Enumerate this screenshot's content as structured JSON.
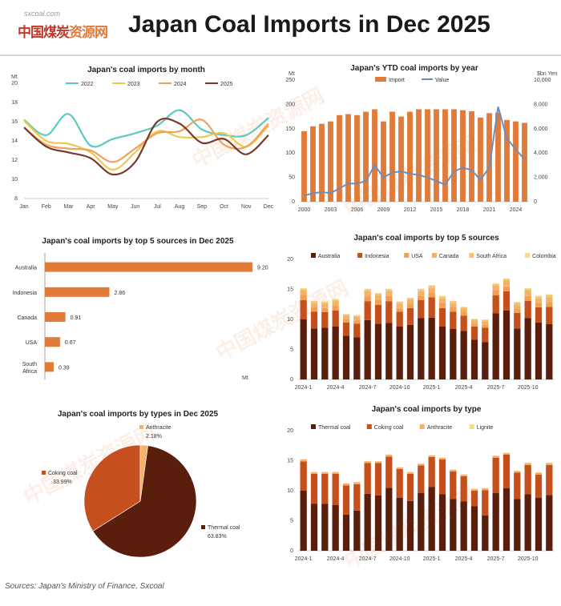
{
  "header": {
    "logo_sub": "sxcoal.com",
    "logo_main": "中国煤炭",
    "logo_main_hl": "资源网",
    "title": "Japan Coal Imports in Dec 2025"
  },
  "source": "Sources: Japan's Ministry of Finance, Sxcoal",
  "colors": {
    "thermal": "#5a1e0c",
    "coking": "#c5501e",
    "anthracite": "#e8893a",
    "lignite": "#f3c07a",
    "usa": "#f0a050",
    "canada": "#f3b16a",
    "sa": "#f5c56a",
    "colombia": "#f8d890"
  },
  "chart_data": [
    {
      "id": "monthly",
      "type": "line",
      "title": "Japan's coal imports by month",
      "yunit": "Mt",
      "ylim": [
        8,
        20
      ],
      "yticks": [
        8,
        10,
        12,
        14,
        16,
        18,
        20
      ],
      "categories": [
        "Jan",
        "Feb",
        "Mar",
        "Apr",
        "May",
        "Jun",
        "Jul",
        "Aug",
        "Sep",
        "Oct",
        "Nov",
        "Dec"
      ],
      "series": [
        {
          "name": "2022",
          "color": "#5ec9c0",
          "values": [
            16.2,
            14.6,
            16.8,
            13.5,
            14.2,
            14.8,
            15.6,
            17.2,
            15.2,
            14.6,
            14.6,
            16.4
          ]
        },
        {
          "name": "2023",
          "color": "#f2c84b",
          "values": [
            16.1,
            14.0,
            13.7,
            12.8,
            11.0,
            12.8,
            15.0,
            14.4,
            14.4,
            14.8,
            13.4,
            15.6
          ]
        },
        {
          "name": "2024",
          "color": "#f0a060",
          "values": [
            15.4,
            13.6,
            13.2,
            13.0,
            11.8,
            13.2,
            14.8,
            15.0,
            16.2,
            13.6,
            13.4,
            15.8
          ]
        },
        {
          "name": "2025",
          "color": "#7a3a2a",
          "values": [
            15.4,
            13.4,
            12.8,
            12.2,
            10.5,
            11.8,
            16.0,
            15.8,
            13.8,
            14.2,
            12.6,
            14.6
          ]
        }
      ]
    },
    {
      "id": "ytd",
      "type": "bar",
      "title": "Japan's YTD coal imports by year",
      "yunit_left": "Mt",
      "yunit_right": "$bn Yen",
      "ylim": [
        0,
        250
      ],
      "yticks": [
        0,
        50,
        100,
        150,
        200,
        250
      ],
      "ylim_right": [
        0,
        10000
      ],
      "yticks_right": [
        "0",
        "2,000",
        "4,000",
        "6,000",
        "8,000",
        "10,000"
      ],
      "yticks_right_values": [
        0,
        2000,
        4000,
        6000,
        8000,
        10000
      ],
      "xticks": [
        "2000",
        "2003",
        "2006",
        "2009",
        "2012",
        "2015",
        "2018",
        "2021",
        "2024"
      ],
      "x": [
        2000,
        2001,
        2002,
        2003,
        2004,
        2005,
        2006,
        2007,
        2008,
        2009,
        2010,
        2011,
        2012,
        2013,
        2014,
        2015,
        2016,
        2017,
        2018,
        2019,
        2020,
        2021,
        2022,
        2023,
        2024,
        2025
      ],
      "series": [
        {
          "name": "Import",
          "color": "#e07b39",
          "values": [
            145,
            155,
            160,
            165,
            178,
            180,
            178,
            185,
            190,
            165,
            185,
            175,
            185,
            190,
            190,
            190,
            190,
            190,
            188,
            186,
            173,
            182,
            183,
            168,
            165,
            162
          ]
        },
        {
          "name": "Value",
          "color": "#6c8ebf",
          "values": [
            500,
            700,
            800,
            700,
            1100,
            1500,
            1500,
            1700,
            3000,
            2000,
            2400,
            2500,
            2300,
            2200,
            2000,
            1700,
            1400,
            2500,
            2800,
            2600,
            1800,
            2800,
            7800,
            5200,
            4300,
            3500
          ]
        }
      ],
      "legend": [
        "Import",
        "Value"
      ]
    },
    {
      "id": "top5",
      "type": "bar",
      "orientation": "horizontal",
      "title": "Japan's coal imports by top 5 sources in Dec 2025",
      "unit": "Mt",
      "categories": [
        "Australia",
        "Indonesia",
        "Canada",
        "USA",
        "South\nAfrica"
      ],
      "values": [
        9.2,
        2.86,
        0.91,
        0.67,
        0.39
      ],
      "labels": [
        "9.20",
        "2.86",
        "0.91",
        "0.67",
        "0.39"
      ],
      "xlim": [
        0,
        9.2
      ]
    },
    {
      "id": "sources",
      "type": "bar",
      "stacked": true,
      "title": "Japan's coal imports by top 5 sources",
      "ylim": [
        0,
        20
      ],
      "yticks": [
        0,
        5,
        10,
        15,
        20
      ],
      "xticks": [
        "2024-1",
        "2024-4",
        "2024-7",
        "2024-10",
        "2025-1",
        "2025-4",
        "2025-7",
        "2025-10"
      ],
      "x": [
        "2024-1",
        "2024-2",
        "2024-3",
        "2024-4",
        "2024-5",
        "2024-6",
        "2024-7",
        "2024-8",
        "2024-9",
        "2024-10",
        "2024-11",
        "2024-12",
        "2025-1",
        "2025-2",
        "2025-3",
        "2025-4",
        "2025-5",
        "2025-6",
        "2025-7",
        "2025-8",
        "2025-9",
        "2025-10",
        "2025-11",
        "2025-12"
      ],
      "series": [
        {
          "name": "Australia",
          "color": "#5a1e0c",
          "values": [
            10.0,
            8.5,
            8.6,
            8.8,
            7.3,
            7.0,
            9.9,
            9.3,
            9.4,
            8.8,
            9.1,
            10.2,
            10.3,
            8.8,
            8.4,
            8.1,
            6.6,
            6.2,
            11.0,
            11.5,
            8.5,
            10.2,
            9.5,
            9.2
          ]
        },
        {
          "name": "Indonesia",
          "color": "#c5501e",
          "values": [
            3.2,
            2.8,
            2.6,
            2.7,
            2.2,
            2.3,
            3.1,
            3.1,
            3.6,
            2.5,
            2.8,
            3.0,
            3.4,
            3.1,
            2.9,
            2.5,
            2.2,
            2.4,
            3.0,
            3.2,
            2.6,
            2.9,
            2.5,
            2.9
          ]
        },
        {
          "name": "USA",
          "color": "#f0a050",
          "values": [
            0.8,
            0.7,
            0.7,
            0.7,
            0.5,
            0.5,
            0.8,
            0.8,
            0.9,
            0.6,
            0.7,
            0.7,
            0.8,
            0.8,
            0.7,
            0.6,
            0.5,
            0.5,
            0.8,
            0.8,
            0.7,
            0.8,
            0.7,
            0.7
          ]
        },
        {
          "name": "Canada",
          "color": "#f3b16a",
          "values": [
            0.8,
            0.7,
            0.7,
            0.8,
            0.6,
            0.6,
            0.9,
            0.8,
            0.8,
            0.7,
            0.7,
            0.8,
            0.8,
            0.8,
            0.7,
            0.6,
            0.5,
            0.6,
            0.8,
            0.9,
            0.7,
            0.9,
            0.8,
            0.9
          ]
        },
        {
          "name": "South Africa",
          "color": "#f5c56a",
          "values": [
            0.3,
            0.3,
            0.3,
            0.3,
            0.2,
            0.2,
            0.3,
            0.3,
            0.3,
            0.3,
            0.2,
            0.3,
            0.3,
            0.3,
            0.3,
            0.2,
            0.2,
            0.2,
            0.3,
            0.3,
            0.3,
            0.3,
            0.3,
            0.4
          ]
        },
        {
          "name": "Colombia",
          "color": "#f8d890",
          "values": [
            0.1,
            0.1,
            0.1,
            0.1,
            0.1,
            0.1,
            0.1,
            0.1,
            0.1,
            0.1,
            0.1,
            0.1,
            0.1,
            0.1,
            0.1,
            0.1,
            0.1,
            0.1,
            0.1,
            0.1,
            0.1,
            0.1,
            0.1,
            0.1
          ]
        }
      ]
    },
    {
      "id": "types-pie",
      "type": "pie",
      "title": "Japan's coal imports by types in Dec 2025",
      "series": [
        {
          "name": "Thermal coal",
          "value": 63.83,
          "label": "63.83%",
          "color": "#5a1e0c"
        },
        {
          "name": "Coking coal",
          "value": 33.99,
          "label": "33.99%",
          "color": "#c5501e"
        },
        {
          "name": "Anthracite",
          "value": 2.18,
          "label": "2.18%",
          "color": "#f3b16a"
        }
      ]
    },
    {
      "id": "types",
      "type": "bar",
      "stacked": true,
      "title": "Japan's coal imports by type",
      "ylim": [
        0,
        20
      ],
      "yticks": [
        0,
        5,
        10,
        15,
        20
      ],
      "xticks": [
        "2024-1",
        "2024-4",
        "2024-7",
        "2024-10",
        "2025-1",
        "2025-4",
        "2025-7",
        "2025-10"
      ],
      "x": [
        "2024-1",
        "2024-2",
        "2024-3",
        "2024-4",
        "2024-5",
        "2024-6",
        "2024-7",
        "2024-8",
        "2024-9",
        "2024-10",
        "2024-11",
        "2024-12",
        "2025-1",
        "2025-2",
        "2025-3",
        "2025-4",
        "2025-5",
        "2025-6",
        "2025-7",
        "2025-8",
        "2025-9",
        "2025-10",
        "2025-11",
        "2025-12"
      ],
      "series": [
        {
          "name": "Thermal coal",
          "color": "#5a1e0c",
          "values": [
            10.0,
            7.8,
            7.8,
            7.6,
            6.0,
            6.7,
            9.5,
            9.2,
            10.5,
            8.8,
            8.3,
            9.6,
            10.6,
            9.4,
            8.6,
            8.2,
            7.4,
            5.9,
            9.6,
            10.4,
            8.6,
            9.4,
            8.8,
            9.3
          ]
        },
        {
          "name": "Coking coal",
          "color": "#c5501e",
          "values": [
            4.9,
            5.0,
            5.0,
            5.2,
            4.9,
            4.4,
            5.1,
            5.4,
            5.2,
            4.8,
            4.5,
            4.6,
            5.0,
            5.8,
            4.6,
            4.2,
            2.6,
            4.2,
            5.9,
            5.6,
            4.4,
            4.9,
            3.9,
            5.0
          ]
        },
        {
          "name": "Anthracite",
          "color": "#f3b16a",
          "values": [
            0.3,
            0.3,
            0.3,
            0.3,
            0.3,
            0.3,
            0.3,
            0.3,
            0.3,
            0.3,
            0.3,
            0.3,
            0.3,
            0.3,
            0.3,
            0.3,
            0.3,
            0.3,
            0.3,
            0.3,
            0.3,
            0.3,
            0.3,
            0.3
          ]
        },
        {
          "name": "Lignite",
          "color": "#f8d890",
          "values": [
            0.05,
            0.05,
            0.05,
            0.05,
            0.05,
            0.05,
            0.05,
            0.05,
            0.05,
            0.05,
            0.05,
            0.05,
            0.05,
            0.05,
            0.05,
            0.05,
            0.05,
            0.05,
            0.05,
            0.05,
            0.05,
            0.05,
            0.05,
            0.05
          ]
        }
      ]
    }
  ]
}
